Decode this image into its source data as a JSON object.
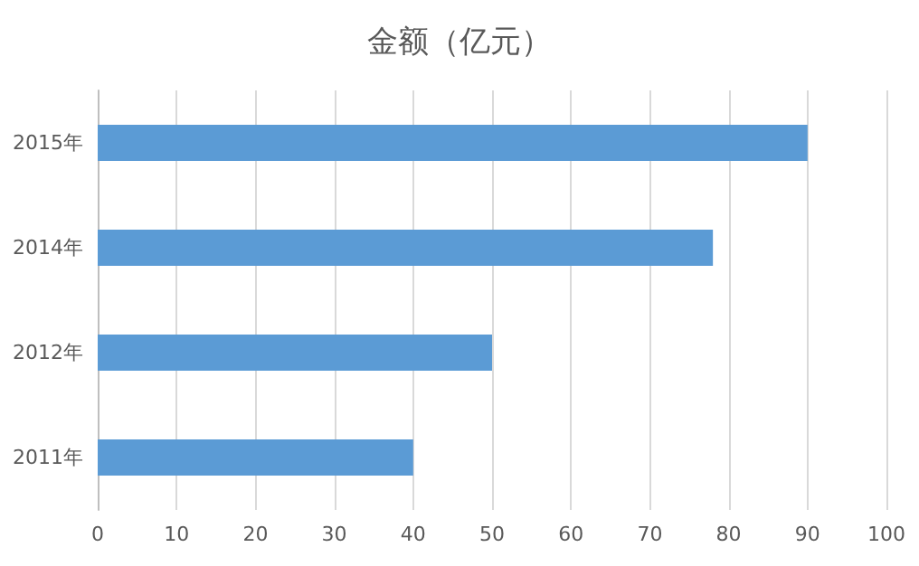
{
  "chart_data": {
    "type": "bar",
    "orientation": "horizontal",
    "title": "金额（亿元）",
    "categories": [
      "2015年",
      "2014年",
      "2012年",
      "2011年"
    ],
    "values": [
      90,
      78,
      50,
      40
    ],
    "color": "#5b9bd5",
    "xlim": [
      0,
      100
    ],
    "xticks": [
      0,
      10,
      20,
      30,
      40,
      50,
      60,
      70,
      80,
      90,
      100
    ],
    "grid": "x"
  }
}
